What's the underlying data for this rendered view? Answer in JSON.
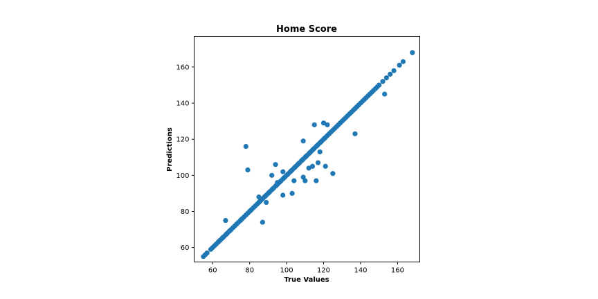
{
  "chart_data": {
    "type": "scatter",
    "title": "Home Score",
    "xlabel": "True Values",
    "ylabel": "Predictions",
    "xlim": [
      50,
      172
    ],
    "ylim": [
      52,
      177
    ],
    "xticks": [
      60,
      80,
      100,
      120,
      140,
      160
    ],
    "yticks": [
      60,
      80,
      100,
      120,
      140,
      160
    ],
    "grid": false,
    "marker_color": "#1f77b4",
    "outliers": [
      {
        "x": 78,
        "y": 116
      },
      {
        "x": 79,
        "y": 103
      },
      {
        "x": 87,
        "y": 74
      },
      {
        "x": 92,
        "y": 100
      },
      {
        "x": 89,
        "y": 85
      },
      {
        "x": 94,
        "y": 106
      },
      {
        "x": 98,
        "y": 89
      },
      {
        "x": 103,
        "y": 90
      },
      {
        "x": 104,
        "y": 97
      },
      {
        "x": 109,
        "y": 99
      },
      {
        "x": 110,
        "y": 97
      },
      {
        "x": 109,
        "y": 119
      },
      {
        "x": 114,
        "y": 105
      },
      {
        "x": 115,
        "y": 128
      },
      {
        "x": 116,
        "y": 97
      },
      {
        "x": 117,
        "y": 107
      },
      {
        "x": 120,
        "y": 129
      },
      {
        "x": 121,
        "y": 105
      },
      {
        "x": 122,
        "y": 128
      },
      {
        "x": 125,
        "y": 101
      },
      {
        "x": 137,
        "y": 123
      },
      {
        "x": 153,
        "y": 145
      },
      {
        "x": 67,
        "y": 75
      },
      {
        "x": 85,
        "y": 88
      },
      {
        "x": 95,
        "y": 96
      },
      {
        "x": 112,
        "y": 104
      },
      {
        "x": 98,
        "y": 102
      },
      {
        "x": 118,
        "y": 113
      }
    ],
    "diagonal_points": [
      55,
      56,
      57,
      59,
      60,
      61,
      62,
      63,
      63.5,
      64,
      65,
      65.5,
      66,
      67,
      67.5,
      68,
      69,
      69.5,
      70,
      71,
      72,
      73,
      74,
      75,
      75.5,
      76,
      77,
      78,
      79,
      80,
      80.5,
      81,
      82,
      83,
      84,
      85,
      85.5,
      86,
      87,
      88,
      88.5,
      89,
      90,
      90.5,
      91,
      92,
      92.5,
      93,
      94,
      94.5,
      95,
      96,
      96.5,
      97,
      98,
      98.5,
      99,
      100,
      100.5,
      101,
      102,
      102.5,
      103,
      104,
      104.5,
      105,
      106,
      106.5,
      107,
      108,
      108.5,
      109,
      110,
      110.5,
      111,
      112,
      112.5,
      113,
      114,
      114.5,
      115,
      116,
      116.5,
      117,
      118,
      118.5,
      119,
      120,
      120.5,
      121,
      122,
      123,
      124,
      125,
      126,
      127,
      128,
      129,
      130,
      131,
      132,
      133,
      134,
      135,
      136,
      137,
      138,
      139,
      140,
      141,
      142,
      143,
      144,
      145,
      146,
      147,
      148,
      149,
      150,
      152,
      154,
      156,
      158,
      161,
      163,
      168
    ]
  }
}
